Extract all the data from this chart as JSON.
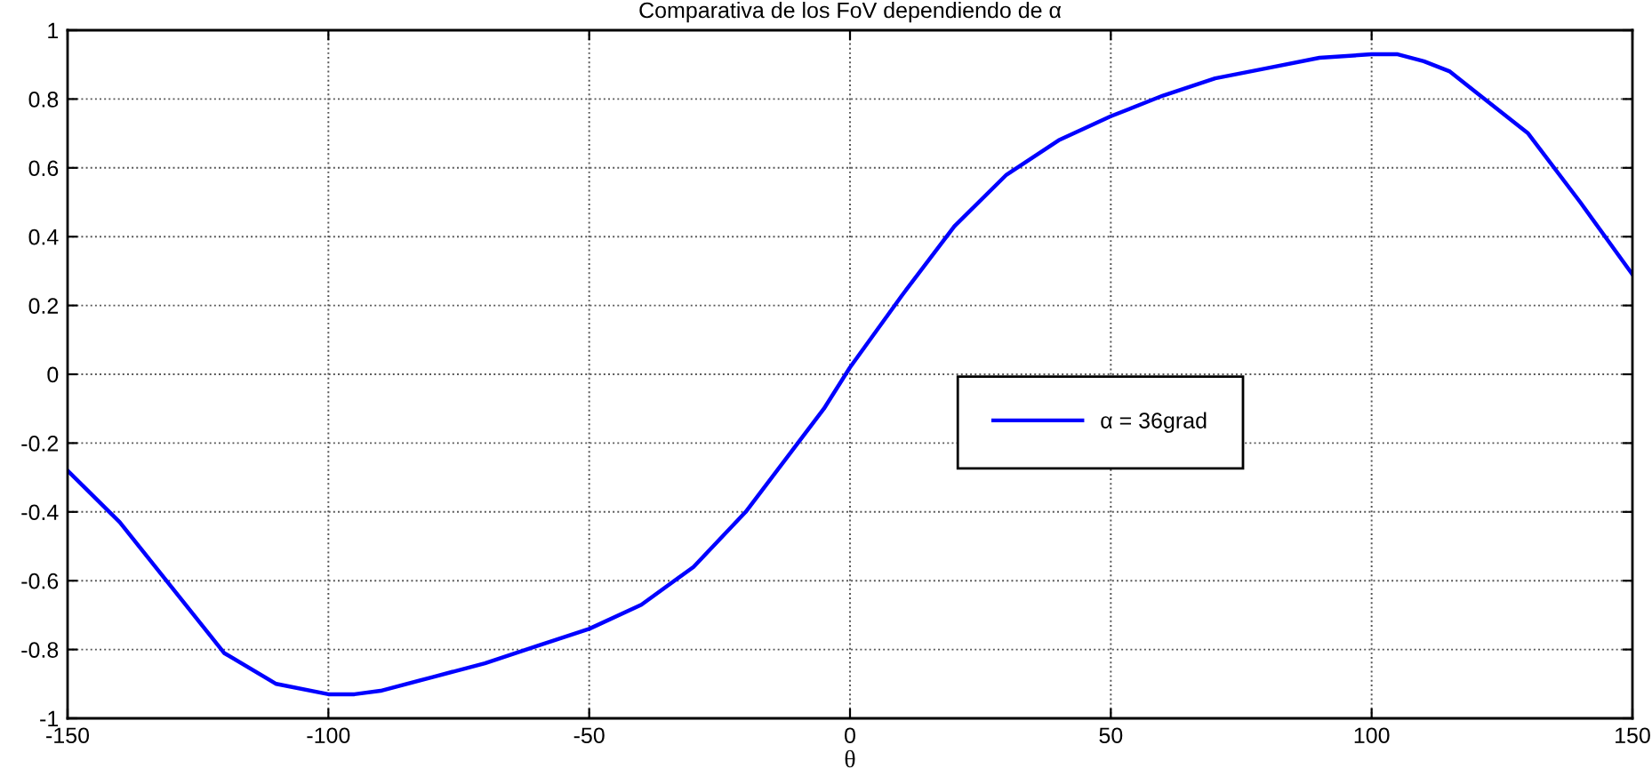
{
  "chart_data": {
    "type": "line",
    "title": "Comparativa de los FoV dependiendo de α",
    "xlabel": "θ",
    "x": [
      -150,
      -140,
      -130,
      -120,
      -110,
      -100,
      -95,
      -90,
      -80,
      -70,
      -60,
      -50,
      -40,
      -30,
      -20,
      -10,
      -5,
      0,
      10,
      20,
      30,
      40,
      50,
      60,
      70,
      80,
      90,
      100,
      105,
      110,
      115,
      120,
      130,
      140,
      150
    ],
    "series": [
      {
        "name": "α = 36grad",
        "color": "#0000ff",
        "values": [
          -0.28,
          -0.43,
          -0.62,
          -0.81,
          -0.9,
          -0.93,
          -0.93,
          -0.92,
          -0.88,
          -0.84,
          -0.79,
          -0.74,
          -0.67,
          -0.56,
          -0.4,
          -0.2,
          -0.1,
          0.02,
          0.23,
          0.43,
          0.58,
          0.68,
          0.75,
          0.81,
          0.86,
          0.89,
          0.92,
          0.93,
          0.93,
          0.91,
          0.88,
          0.82,
          0.7,
          0.5,
          0.29
        ]
      }
    ],
    "xlim": [
      -150,
      150
    ],
    "xticks": [
      -150,
      -100,
      -50,
      0,
      50,
      100,
      150
    ],
    "ylim": [
      -1,
      1
    ],
    "yticks": [
      -1,
      -0.8,
      -0.6,
      -0.4,
      -0.2,
      0,
      0.2,
      0.4,
      0.6,
      0.8,
      1
    ],
    "grid": true,
    "legend": "right",
    "marker": "none",
    "line_style": "solid"
  }
}
